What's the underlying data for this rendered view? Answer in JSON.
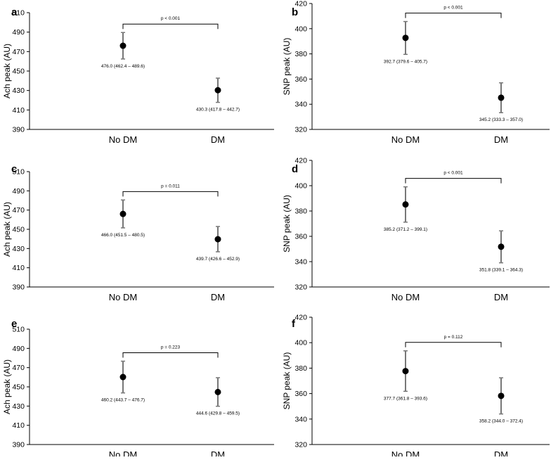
{
  "chart_data": [
    {
      "type": "scatter",
      "panel_label": "a",
      "ylabel": "Ach peak (AU)",
      "categories": [
        "No DM",
        "DM"
      ],
      "values": [
        476.0,
        430.3
      ],
      "ci_low": [
        462.4,
        417.8
      ],
      "ci_high": [
        489.6,
        442.7
      ],
      "point_labels": [
        "476.0 (462.4 – 489.6)",
        "430.3 (417.8 – 442.7)"
      ],
      "ylim": [
        390,
        510
      ],
      "yticks": [
        390,
        410,
        430,
        450,
        470,
        490,
        510
      ],
      "p_label": "p < 0.001",
      "grid": false
    },
    {
      "type": "scatter",
      "panel_label": "b",
      "ylabel": "SNP peak (AU)",
      "categories": [
        "No DM",
        "DM"
      ],
      "values": [
        392.7,
        345.2
      ],
      "ci_low": [
        379.6,
        333.3
      ],
      "ci_high": [
        405.7,
        357.0
      ],
      "point_labels": [
        "392.7 (379.6 – 405.7)",
        "345.2 (333.3 – 357.0)"
      ],
      "ylim": [
        320,
        420
      ],
      "yticks": [
        320,
        340,
        360,
        380,
        400,
        420
      ],
      "p_label": "p < 0.001",
      "grid": false
    },
    {
      "type": "scatter",
      "panel_label": "c",
      "ylabel": "Ach peak (AU)",
      "categories": [
        "No DM",
        "DM"
      ],
      "values": [
        466.0,
        439.7
      ],
      "ci_low": [
        451.5,
        426.6
      ],
      "ci_high": [
        480.5,
        452.9
      ],
      "point_labels": [
        "466.0 (451.5 – 480.5)",
        "439.7 (426.6 – 452.9)"
      ],
      "ylim": [
        390,
        510
      ],
      "yticks": [
        390,
        410,
        430,
        450,
        470,
        490,
        510
      ],
      "p_label": "p = 0.011",
      "grid": false
    },
    {
      "type": "scatter",
      "panel_label": "d",
      "ylabel": "SNP peak (AU)",
      "categories": [
        "No DM",
        "DM"
      ],
      "values": [
        385.2,
        351.8
      ],
      "ci_low": [
        371.2,
        339.1
      ],
      "ci_high": [
        399.1,
        364.3
      ],
      "point_labels": [
        "385.2 (371.2 – 399.1)",
        "351.8 (339.1 – 364.3)"
      ],
      "ylim": [
        320,
        420
      ],
      "yticks": [
        320,
        340,
        360,
        380,
        400,
        420
      ],
      "p_label": "p < 0.001",
      "grid": false
    },
    {
      "type": "scatter",
      "panel_label": "e",
      "ylabel": "Ach peak (AU)",
      "categories": [
        "No DM",
        "DM"
      ],
      "values": [
        460.2,
        444.6
      ],
      "ci_low": [
        443.7,
        429.8
      ],
      "ci_high": [
        476.7,
        459.5
      ],
      "point_labels": [
        "460.2 (443.7 – 476.7)",
        "444.6 (429.8 – 459.5)"
      ],
      "ylim": [
        390,
        510
      ],
      "yticks": [
        390,
        410,
        430,
        450,
        470,
        490,
        510
      ],
      "p_label": "p = 0.223",
      "grid": false
    },
    {
      "type": "scatter",
      "panel_label": "f",
      "ylabel": "SNP peak (AU)",
      "categories": [
        "No DM",
        "DM"
      ],
      "values": [
        377.7,
        358.2
      ],
      "ci_low": [
        361.8,
        344.0
      ],
      "ci_high": [
        393.6,
        372.4
      ],
      "point_labels": [
        "377.7 (361.8 – 393.6)",
        "358.2 (344.0 – 372.4)"
      ],
      "ylim": [
        320,
        420
      ],
      "yticks": [
        320,
        340,
        360,
        380,
        400,
        420
      ],
      "p_label": "p = 0.112",
      "grid": false
    }
  ]
}
